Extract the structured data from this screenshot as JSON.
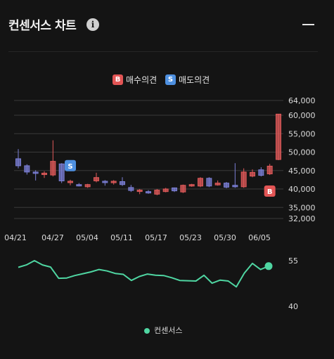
{
  "header": {
    "title": "컨센서스 차트",
    "info_icon": "info-icon",
    "collapse_icon": "minus-icon"
  },
  "legend_top": {
    "buy": {
      "badge": "B",
      "label": "매수의견",
      "color": "#e25555"
    },
    "sell": {
      "badge": "S",
      "label": "매도의견",
      "color": "#4e90e0"
    }
  },
  "legend_bottom": {
    "label": "컨센서스",
    "color": "#4fd6a2"
  },
  "colors": {
    "up": "#e05a5a",
    "down": "#7b7fd6",
    "line": "#4fd6a2",
    "grid": "#3a3a3a"
  },
  "chart_data": [
    {
      "type": "candlestick",
      "x_labels": [
        "04/21",
        "04/27",
        "05/04",
        "05/11",
        "05/17",
        "05/23",
        "05/30",
        "06/05"
      ],
      "y_ticks": [
        64000,
        60000,
        55000,
        50000,
        45000,
        40000,
        35000,
        32000
      ],
      "ylim": [
        32000,
        64000
      ],
      "grid": true,
      "candles": [
        {
          "o": 48200,
          "c": 46300,
          "h": 50800,
          "l": 45600
        },
        {
          "o": 46300,
          "c": 44600,
          "h": 46700,
          "l": 43900
        },
        {
          "o": 44600,
          "c": 44400,
          "h": 45100,
          "l": 42300
        },
        {
          "o": 43900,
          "c": 44300,
          "h": 44800,
          "l": 43000
        },
        {
          "o": 43800,
          "c": 47500,
          "h": 53200,
          "l": 43400
        },
        {
          "o": 46800,
          "c": 42200,
          "h": 47000,
          "l": 41600
        },
        {
          "o": 41900,
          "c": 42100,
          "h": 42500,
          "l": 41000
        },
        {
          "o": 41200,
          "c": 41000,
          "h": 41600,
          "l": 40700
        },
        {
          "o": 40600,
          "c": 41200,
          "h": 41400,
          "l": 40300
        },
        {
          "o": 42200,
          "c": 43100,
          "h": 44400,
          "l": 41800
        },
        {
          "o": 42100,
          "c": 41800,
          "h": 42400,
          "l": 40900
        },
        {
          "o": 41700,
          "c": 42100,
          "h": 42400,
          "l": 41200
        },
        {
          "o": 42000,
          "c": 41200,
          "h": 43200,
          "l": 40800
        },
        {
          "o": 40400,
          "c": 39600,
          "h": 41100,
          "l": 39200
        },
        {
          "o": 39500,
          "c": 39700,
          "h": 40000,
          "l": 38600
        },
        {
          "o": 39300,
          "c": 39100,
          "h": 39700,
          "l": 38700
        },
        {
          "o": 38600,
          "c": 39700,
          "h": 40000,
          "l": 38300
        },
        {
          "o": 39300,
          "c": 40000,
          "h": 40300,
          "l": 39100
        },
        {
          "o": 40300,
          "c": 39500,
          "h": 40400,
          "l": 39200
        },
        {
          "o": 39200,
          "c": 41000,
          "h": 41200,
          "l": 38900
        },
        {
          "o": 40800,
          "c": 41200,
          "h": 41400,
          "l": 40600
        },
        {
          "o": 40800,
          "c": 42900,
          "h": 43200,
          "l": 40500
        },
        {
          "o": 42900,
          "c": 40800,
          "h": 43200,
          "l": 40500
        },
        {
          "o": 41100,
          "c": 41600,
          "h": 42300,
          "l": 40900
        },
        {
          "o": 41600,
          "c": 40500,
          "h": 41900,
          "l": 40200
        },
        {
          "o": 41000,
          "c": 40600,
          "h": 47000,
          "l": 40300
        },
        {
          "o": 40600,
          "c": 44600,
          "h": 45600,
          "l": 40300
        },
        {
          "o": 43500,
          "c": 44500,
          "h": 45300,
          "l": 43200
        },
        {
          "o": 45200,
          "c": 43700,
          "h": 45900,
          "l": 43400
        },
        {
          "o": 44100,
          "c": 46200,
          "h": 46800,
          "l": 43800
        },
        {
          "o": 48000,
          "c": 60300,
          "h": 60300,
          "l": 47800
        }
      ],
      "markers": [
        {
          "type": "sell",
          "label": "S",
          "index": 6,
          "price": 45000
        },
        {
          "type": "buy",
          "label": "B",
          "index": 29,
          "price": 40000
        }
      ]
    },
    {
      "type": "line",
      "name": "컨센서스",
      "y_ticks": [
        55,
        40
      ],
      "ylim": [
        38,
        57
      ],
      "values": [
        52.8,
        53.6,
        55.0,
        53.6,
        52.9,
        49.2,
        49.3,
        50.1,
        50.7,
        51.3,
        52.1,
        51.6,
        50.8,
        50.5,
        48.5,
        49.8,
        50.6,
        50.2,
        50.1,
        49.4,
        48.5,
        48.4,
        48.3,
        50.2,
        47.6,
        48.6,
        48.3,
        46.4,
        50.9,
        54.1,
        52.1,
        53.2
      ]
    }
  ]
}
